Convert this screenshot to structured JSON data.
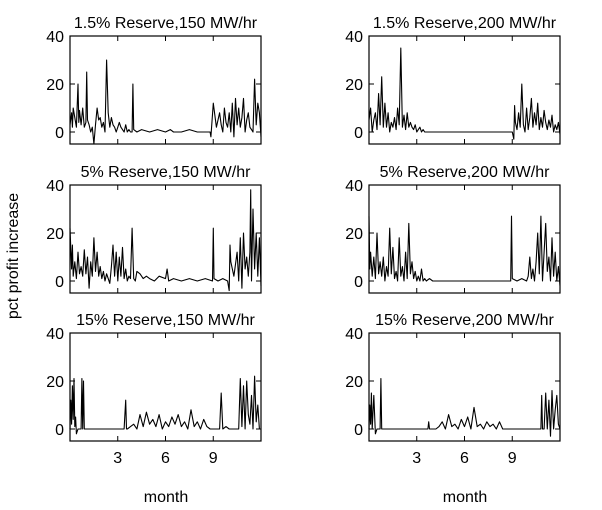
{
  "figure": {
    "ylabel": "pct profit increase",
    "xlabel": "month"
  },
  "chart_data": [
    {
      "type": "line",
      "title": "1.5% Reserve,150 MW/hr",
      "ylim": [
        -5,
        40
      ],
      "xlim": [
        0,
        12
      ],
      "yticks": [
        0,
        20,
        40
      ],
      "xticks": [
        3,
        6,
        9
      ],
      "xticklabels_visible": false,
      "x": [
        0.0,
        0.1,
        0.15,
        0.2,
        0.3,
        0.4,
        0.5,
        0.55,
        0.6,
        0.7,
        0.8,
        0.9,
        1.0,
        1.05,
        1.1,
        1.2,
        1.3,
        1.4,
        1.5,
        1.6,
        1.7,
        1.8,
        1.9,
        2.0,
        2.1,
        2.2,
        2.3,
        2.4,
        2.5,
        2.6,
        2.7,
        2.8,
        2.9,
        3.0,
        3.1,
        3.2,
        3.3,
        3.4,
        3.5,
        3.6,
        3.7,
        3.8,
        3.9,
        3.95,
        4.0,
        4.2,
        4.5,
        5.0,
        5.5,
        6.0,
        6.3,
        6.5,
        7.0,
        7.5,
        8.0,
        8.5,
        8.8,
        8.85,
        9.0,
        9.2,
        9.4,
        9.5,
        9.6,
        9.7,
        9.8,
        9.9,
        10.0,
        10.1,
        10.2,
        10.3,
        10.4,
        10.5,
        10.6,
        10.7,
        10.8,
        10.9,
        11.0,
        11.1,
        11.2,
        11.3,
        11.4,
        11.5,
        11.6,
        11.7,
        11.8,
        11.9,
        12.0
      ],
      "y": [
        3,
        8,
        2,
        10,
        6,
        2,
        20,
        4,
        9,
        3,
        10,
        2,
        4,
        25,
        5,
        3,
        0,
        2,
        -5,
        3,
        10,
        5,
        6,
        2,
        4,
        0,
        30,
        8,
        2,
        6,
        3,
        2,
        0,
        2,
        4,
        2,
        1,
        0,
        3,
        0,
        1,
        0,
        0,
        20,
        1,
        0,
        1,
        0,
        1,
        0,
        1,
        0,
        0,
        1,
        0,
        0,
        0,
        -2,
        12,
        2,
        8,
        3,
        0,
        10,
        4,
        2,
        8,
        0,
        12,
        -2,
        14,
        3,
        10,
        2,
        6,
        14,
        0,
        5,
        8,
        2,
        1,
        0,
        22,
        3,
        12,
        8,
        -2
      ]
    },
    {
      "type": "line",
      "title": "1.5% Reserve,200 MW/hr",
      "ylim": [
        -5,
        40
      ],
      "xlim": [
        0,
        12
      ],
      "yticks": [
        0,
        20,
        40
      ],
      "xticks": [
        3,
        6,
        9
      ],
      "xticklabels_visible": false,
      "x": [
        0.0,
        0.1,
        0.2,
        0.3,
        0.4,
        0.5,
        0.6,
        0.7,
        0.8,
        0.9,
        1.0,
        1.1,
        1.2,
        1.3,
        1.4,
        1.5,
        1.6,
        1.7,
        1.8,
        1.9,
        2.0,
        2.1,
        2.2,
        2.3,
        2.4,
        2.5,
        2.6,
        2.7,
        2.8,
        2.9,
        3.0,
        3.1,
        3.2,
        3.3,
        3.4,
        3.5,
        3.7,
        4.0,
        4.5,
        5.0,
        5.5,
        6.0,
        6.5,
        7.0,
        7.5,
        8.0,
        8.5,
        9.0,
        9.1,
        9.15,
        9.2,
        9.3,
        9.4,
        9.5,
        9.6,
        9.7,
        9.8,
        9.9,
        10.0,
        10.1,
        10.2,
        10.3,
        10.4,
        10.5,
        10.6,
        10.7,
        10.8,
        10.9,
        11.0,
        11.1,
        11.2,
        11.3,
        11.4,
        11.5,
        11.6,
        11.7,
        11.8,
        11.9,
        12.0
      ],
      "y": [
        5,
        10,
        0,
        5,
        8,
        1,
        16,
        3,
        23,
        2,
        12,
        2,
        8,
        0,
        4,
        2,
        6,
        1,
        10,
        3,
        35,
        2,
        7,
        1,
        8,
        2,
        4,
        2,
        1,
        3,
        0,
        1,
        2,
        0,
        1,
        0,
        0,
        0,
        0,
        0,
        0,
        0,
        0,
        0,
        0,
        0,
        0,
        0,
        -3,
        11,
        4,
        1,
        8,
        2,
        20,
        3,
        0,
        10,
        1,
        6,
        14,
        2,
        8,
        3,
        12,
        1,
        6,
        2,
        9,
        4,
        1,
        5,
        2,
        7,
        0,
        3,
        1,
        4,
        -1
      ]
    },
    {
      "type": "line",
      "title": "5% Reserve,150 MW/hr",
      "ylim": [
        -5,
        40
      ],
      "xlim": [
        0,
        12
      ],
      "yticks": [
        0,
        20,
        40
      ],
      "xticks": [
        3,
        6,
        9
      ],
      "xticklabels_visible": false,
      "x": [
        0.0,
        0.1,
        0.15,
        0.2,
        0.3,
        0.4,
        0.5,
        0.6,
        0.7,
        0.8,
        0.9,
        1.0,
        1.1,
        1.2,
        1.3,
        1.4,
        1.5,
        1.6,
        1.7,
        1.8,
        1.9,
        2.0,
        2.1,
        2.2,
        2.3,
        2.4,
        2.5,
        2.6,
        2.7,
        2.8,
        2.9,
        3.0,
        3.1,
        3.2,
        3.3,
        3.4,
        3.5,
        3.6,
        3.7,
        3.8,
        3.9,
        4.0,
        4.1,
        4.2,
        4.4,
        4.6,
        4.8,
        5.0,
        5.3,
        5.6,
        6.0,
        6.1,
        6.2,
        6.5,
        7.0,
        7.5,
        8.0,
        8.5,
        8.95,
        9.0,
        9.05,
        9.3,
        9.6,
        9.9,
        10.0,
        10.05,
        10.1,
        10.3,
        10.5,
        10.6,
        10.7,
        10.8,
        10.9,
        11.0,
        11.1,
        11.2,
        11.3,
        11.35,
        11.4,
        11.5,
        11.6,
        11.7,
        11.8,
        11.9,
        12.0
      ],
      "y": [
        22,
        5,
        15,
        2,
        8,
        1,
        12,
        3,
        6,
        2,
        13,
        3,
        10,
        -3,
        8,
        2,
        18,
        4,
        12,
        2,
        6,
        1,
        4,
        0,
        3,
        1,
        -1,
        6,
        15,
        2,
        12,
        0,
        10,
        2,
        14,
        1,
        5,
        0,
        2,
        1,
        22,
        1,
        0,
        4,
        3,
        1,
        2,
        1,
        0,
        2,
        1,
        5,
        0,
        1,
        0,
        1,
        0,
        1,
        0,
        22,
        1,
        0,
        1,
        0,
        -4,
        15,
        8,
        2,
        12,
        0,
        18,
        -3,
        20,
        5,
        10,
        2,
        12,
        38,
        0,
        30,
        5,
        20,
        2,
        18,
        -2
      ]
    },
    {
      "type": "line",
      "title": "5% Reserve,200 MW/hr",
      "ylim": [
        -5,
        40
      ],
      "xlim": [
        0,
        12
      ],
      "yticks": [
        0,
        20,
        40
      ],
      "xticks": [
        3,
        6,
        9
      ],
      "xticklabels_visible": false,
      "x": [
        0.0,
        0.05,
        0.1,
        0.2,
        0.3,
        0.4,
        0.5,
        0.6,
        0.7,
        0.8,
        0.9,
        1.0,
        1.1,
        1.2,
        1.3,
        1.4,
        1.5,
        1.6,
        1.7,
        1.8,
        1.9,
        2.0,
        2.1,
        2.2,
        2.3,
        2.4,
        2.5,
        2.6,
        2.7,
        2.8,
        2.9,
        3.0,
        3.1,
        3.2,
        3.3,
        3.4,
        3.5,
        3.6,
        3.8,
        4.0,
        4.5,
        5.0,
        5.5,
        6.0,
        6.5,
        7.0,
        7.5,
        8.0,
        8.5,
        8.9,
        8.95,
        9.0,
        9.3,
        9.6,
        9.9,
        10.0,
        10.1,
        10.2,
        10.3,
        10.4,
        10.5,
        10.6,
        10.7,
        10.8,
        10.9,
        11.0,
        11.1,
        11.2,
        11.3,
        11.4,
        11.5,
        11.6,
        11.7,
        11.8,
        11.9,
        12.0
      ],
      "y": [
        27,
        5,
        12,
        2,
        10,
        1,
        20,
        3,
        8,
        2,
        10,
        0,
        6,
        2,
        22,
        3,
        14,
        1,
        4,
        0,
        18,
        2,
        6,
        0,
        12,
        1,
        24,
        3,
        8,
        1,
        4,
        0,
        2,
        0,
        5,
        0,
        1,
        0,
        1,
        0,
        0,
        0,
        0,
        0,
        0,
        0,
        0,
        0,
        0,
        0,
        27,
        1,
        0,
        1,
        0,
        2,
        10,
        1,
        5,
        0,
        8,
        20,
        3,
        27,
        0,
        12,
        24,
        4,
        10,
        0,
        18,
        2,
        12,
        0,
        6,
        -2
      ]
    },
    {
      "type": "line",
      "title": "15% Reserve,150 MW/hr",
      "ylim": [
        -5,
        40
      ],
      "xlim": [
        0,
        12
      ],
      "yticks": [
        0,
        20,
        40
      ],
      "xticks": [
        3,
        6,
        9
      ],
      "xticklabels_visible": true,
      "x": [
        0.0,
        0.05,
        0.1,
        0.15,
        0.2,
        0.25,
        0.3,
        0.35,
        0.4,
        0.5,
        0.6,
        0.7,
        0.75,
        0.8,
        0.85,
        0.9,
        1.0,
        1.5,
        2.0,
        2.5,
        3.0,
        3.4,
        3.5,
        3.55,
        3.6,
        3.8,
        4.0,
        4.2,
        4.4,
        4.6,
        4.8,
        5.0,
        5.2,
        5.4,
        5.6,
        5.8,
        6.0,
        6.2,
        6.4,
        6.6,
        6.8,
        7.0,
        7.2,
        7.4,
        7.6,
        7.8,
        8.0,
        8.2,
        8.4,
        8.6,
        8.8,
        9.0,
        9.2,
        9.4,
        9.5,
        9.6,
        9.8,
        10.0,
        10.2,
        10.4,
        10.6,
        10.7,
        10.8,
        10.9,
        11.0,
        11.1,
        11.2,
        11.3,
        11.4,
        11.5,
        11.6,
        11.7,
        11.8,
        11.9,
        12.0
      ],
      "y": [
        0,
        12,
        2,
        18,
        4,
        21,
        1,
        5,
        -2,
        0,
        0,
        0,
        21,
        0,
        20,
        0,
        0,
        0,
        0,
        0,
        0,
        0,
        12,
        0,
        0,
        1,
        2,
        0,
        6,
        1,
        7,
        2,
        4,
        1,
        6,
        0,
        3,
        1,
        5,
        2,
        6,
        1,
        3,
        0,
        8,
        1,
        3,
        0,
        4,
        1,
        0,
        0,
        0,
        0,
        15,
        0,
        1,
        0,
        0,
        0,
        0,
        21,
        1,
        18,
        0,
        20,
        6,
        2,
        14,
        0,
        22,
        3,
        10,
        0,
        0
      ]
    },
    {
      "type": "line",
      "title": "15% Reserve,200 MW/hr",
      "ylim": [
        -5,
        40
      ],
      "xlim": [
        0,
        12
      ],
      "yticks": [
        0,
        20,
        40
      ],
      "xticks": [
        3,
        6,
        9
      ],
      "xticklabels_visible": true,
      "x": [
        0.0,
        0.05,
        0.1,
        0.15,
        0.2,
        0.3,
        0.4,
        0.5,
        0.7,
        0.75,
        0.8,
        0.9,
        1.0,
        2.0,
        3.0,
        3.7,
        3.75,
        3.8,
        4.2,
        4.4,
        4.6,
        4.8,
        5.0,
        5.2,
        5.4,
        5.6,
        5.8,
        6.0,
        6.2,
        6.4,
        6.6,
        6.8,
        7.0,
        7.2,
        7.4,
        7.6,
        7.8,
        8.0,
        8.2,
        8.4,
        8.6,
        9.0,
        9.5,
        10.0,
        10.5,
        10.8,
        10.85,
        10.9,
        11.0,
        11.1,
        11.2,
        11.3,
        11.4,
        11.5,
        11.6,
        11.7,
        11.8,
        11.9,
        12.0
      ],
      "y": [
        0,
        10,
        2,
        15,
        0,
        14,
        -2,
        0,
        0,
        21,
        0,
        0,
        0,
        0,
        0,
        0,
        3,
        0,
        0,
        1,
        3,
        0,
        6,
        1,
        2,
        0,
        4,
        1,
        5,
        0,
        9,
        1,
        2,
        0,
        3,
        1,
        2,
        0,
        3,
        0,
        0,
        0,
        0,
        0,
        0,
        0,
        14,
        0,
        0,
        15,
        0,
        12,
        -3,
        16,
        0,
        8,
        14,
        2,
        0
      ]
    }
  ]
}
